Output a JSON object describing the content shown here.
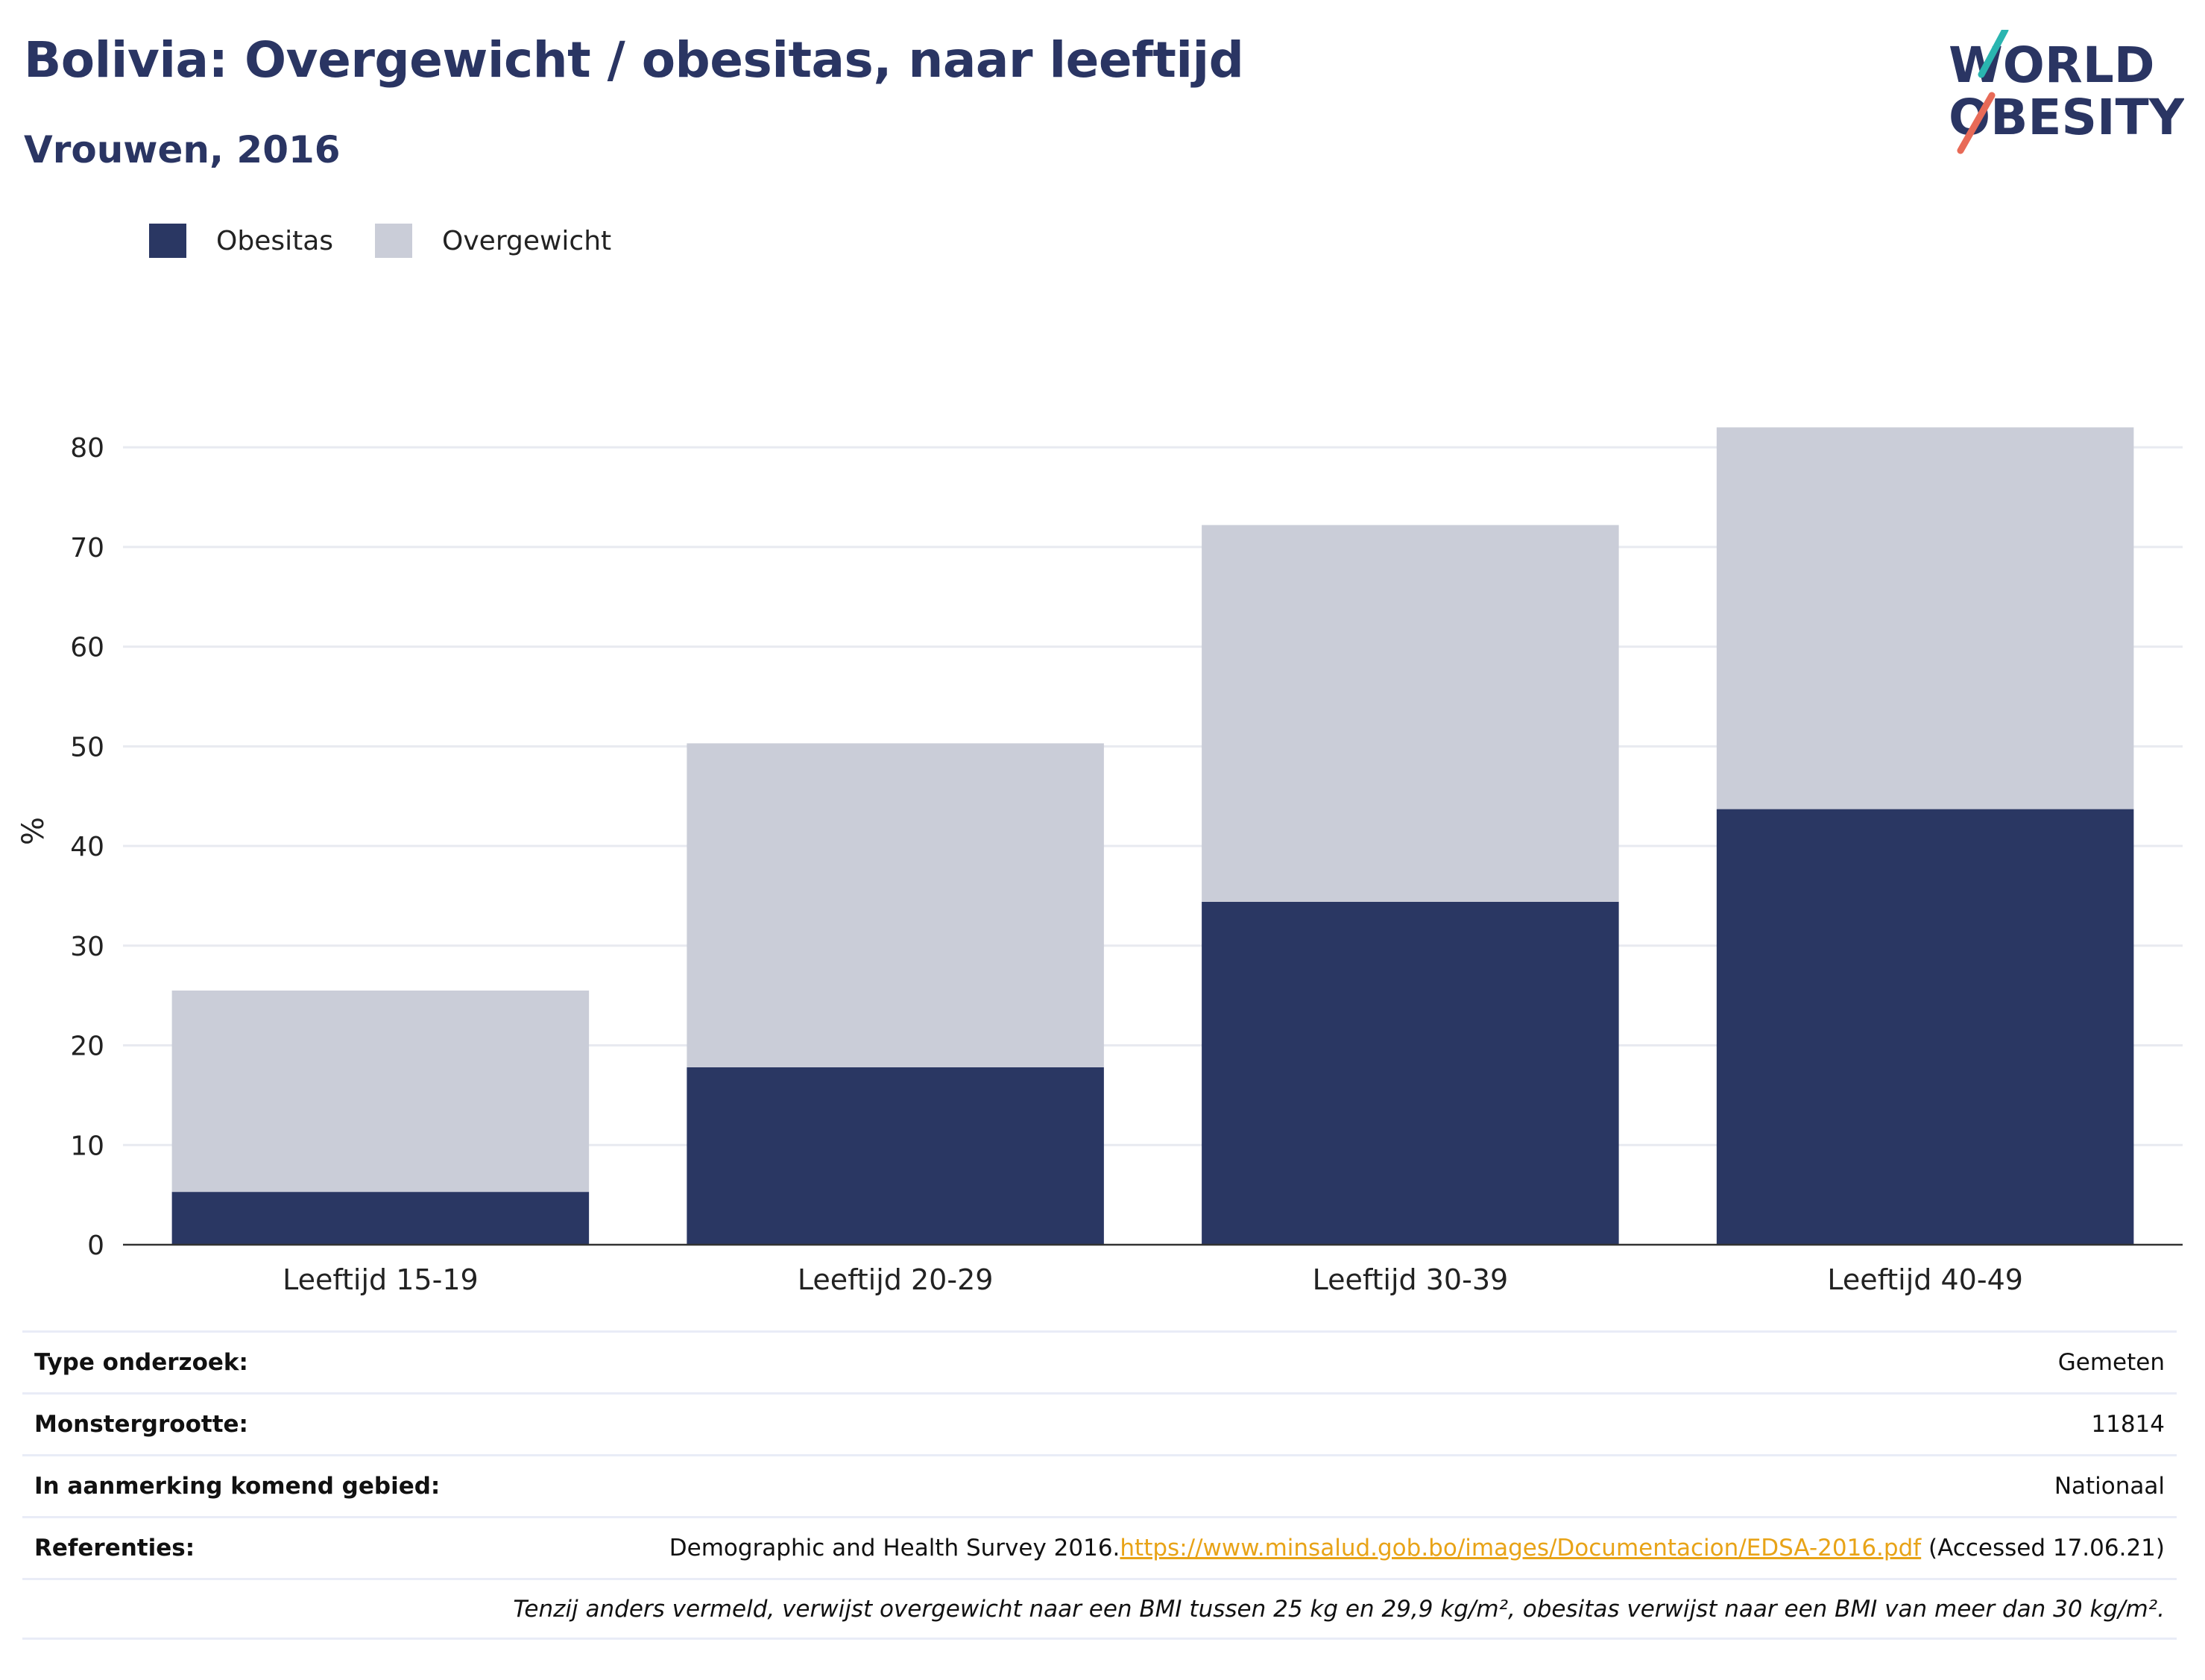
{
  "header": {
    "title": "Bolivia: Overgewicht / obesitas, naar leeftijd",
    "subtitle": "Vrouwen, 2016"
  },
  "logo": {
    "line1": "WORLD",
    "line2": "OBESITY"
  },
  "legend": [
    {
      "label": "Obesitas",
      "color": "#2a3763"
    },
    {
      "label": "Overgewicht",
      "color": "#cacdd8"
    }
  ],
  "chart_data": {
    "type": "bar",
    "stacked": true,
    "categories": [
      "Leeftijd 15-19",
      "Leeftijd 20-29",
      "Leeftijd 30-39",
      "Leeftijd 40-49"
    ],
    "series": [
      {
        "name": "Obesitas",
        "values": [
          5.3,
          17.8,
          34.4,
          43.7
        ],
        "color": "#2a3763"
      },
      {
        "name": "Overgewicht",
        "values": [
          20.2,
          32.5,
          37.8,
          38.3
        ],
        "color": "#cacdd8"
      }
    ],
    "ylabel": "%",
    "ylim": [
      0,
      83
    ],
    "yticks": [
      0,
      10,
      20,
      30,
      40,
      50,
      60,
      70,
      80
    ],
    "grid": true
  },
  "info": {
    "rows": [
      {
        "key": "Type onderzoek:",
        "value": "Gemeten"
      },
      {
        "key": "Monstergrootte:",
        "value": "11814"
      },
      {
        "key": "In aanmerking komend gebied:",
        "value": "Nationaal"
      }
    ],
    "references": {
      "key": "Referenties:",
      "text_before": "Demographic and Health Survey 2016.",
      "link": "https://www.minsalud.gob.bo/images/Documentacion/EDSA-2016.pdf",
      "text_after": " (Accessed 17.06.21)"
    },
    "note": "Tenzij anders vermeld, verwijst overgewicht naar een BMI tussen 25 kg en 29,9 kg/m², obesitas verwijst naar een BMI van meer dan 30 kg/m²."
  }
}
